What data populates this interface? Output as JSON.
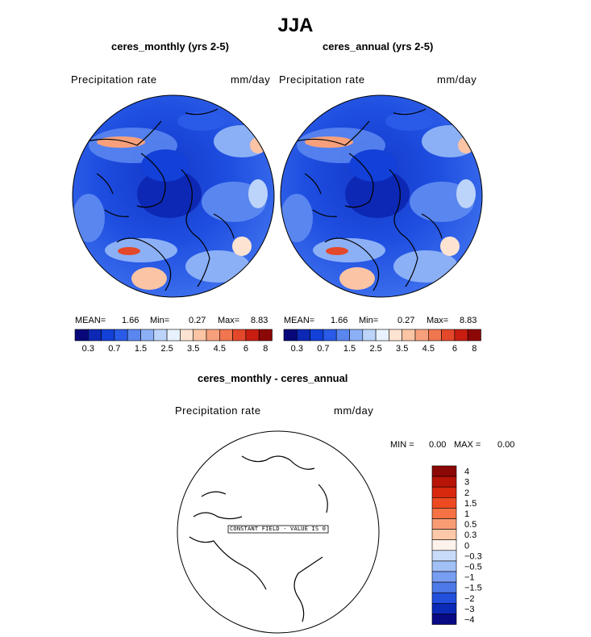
{
  "season": "JJA",
  "panels": [
    {
      "title": "ceres_monthly (yrs 2-5)",
      "variable": "Precipitation rate",
      "units": "mm/day",
      "stats": {
        "mean_label": "MEAN=",
        "mean": "1.66",
        "min_label": "Min=",
        "min": "0.27",
        "max_label": "Max=",
        "max": "8.83"
      }
    },
    {
      "title": "ceres_annual (yrs 2-5)",
      "variable": "Precipitation rate",
      "units": "mm/day",
      "stats": {
        "mean_label": "MEAN=",
        "mean": "1.66",
        "min_label": "Min=",
        "min": "0.27",
        "max_label": "Max=",
        "max": "8.83"
      }
    }
  ],
  "diff_panel": {
    "title": "ceres_monthly - ceres_annual",
    "variable": "Precipitation rate",
    "units": "mm/day",
    "min_label": "MIN =",
    "min": "0.00",
    "max_label": "MAX =",
    "max": "0.00",
    "annotation": "CONSTANT FIELD - VALUE IS 0"
  },
  "chart_data": [
    {
      "type": "heatmap",
      "title": "ceres_monthly (yrs 2-5)",
      "projection": "north polar stereographic",
      "colorbar": {
        "orientation": "horizontal",
        "colors": [
          "#08087a",
          "#0c28b4",
          "#1240d8",
          "#2a5ae8",
          "#5a86f0",
          "#8cb0f6",
          "#bcd4fa",
          "#e8f2fe",
          "#fde4d2",
          "#fbc4a4",
          "#f8a07c",
          "#f07650",
          "#e4482a",
          "#c81e12",
          "#8c0806"
        ],
        "tick_labels": [
          "0.3",
          "0.7",
          "1.5",
          "2.5",
          "3.5",
          "4.5",
          "6",
          "8"
        ]
      }
    },
    {
      "type": "heatmap",
      "title": "ceres_annual (yrs 2-5)",
      "projection": "north polar stereographic",
      "colorbar": {
        "orientation": "horizontal",
        "colors": [
          "#08087a",
          "#0c28b4",
          "#1240d8",
          "#2a5ae8",
          "#5a86f0",
          "#8cb0f6",
          "#bcd4fa",
          "#e8f2fe",
          "#fde4d2",
          "#fbc4a4",
          "#f8a07c",
          "#f07650",
          "#e4482a",
          "#c81e12",
          "#8c0806"
        ],
        "tick_labels": [
          "0.3",
          "0.7",
          "1.5",
          "2.5",
          "3.5",
          "4.5",
          "6",
          "8"
        ]
      }
    },
    {
      "type": "heatmap",
      "title": "ceres_monthly - ceres_annual",
      "projection": "north polar stereographic",
      "constant_value": 0,
      "colorbar": {
        "orientation": "vertical",
        "colors": [
          "#8c0806",
          "#b81408",
          "#d8280e",
          "#ee4a22",
          "#f67244",
          "#f89c74",
          "#fcc8a8",
          "#fdf2ec",
          "#c8dcfa",
          "#a0c0f6",
          "#789ef2",
          "#4c7ae8",
          "#2250dc",
          "#0c2ab8",
          "#080a84"
        ],
        "tick_labels": [
          "4",
          "3",
          "2",
          "1.5",
          "1",
          "0.5",
          "0.3",
          "0",
          "−0.3",
          "−0.5",
          "−1",
          "−1.5",
          "−2",
          "−3",
          "−4"
        ]
      }
    }
  ]
}
